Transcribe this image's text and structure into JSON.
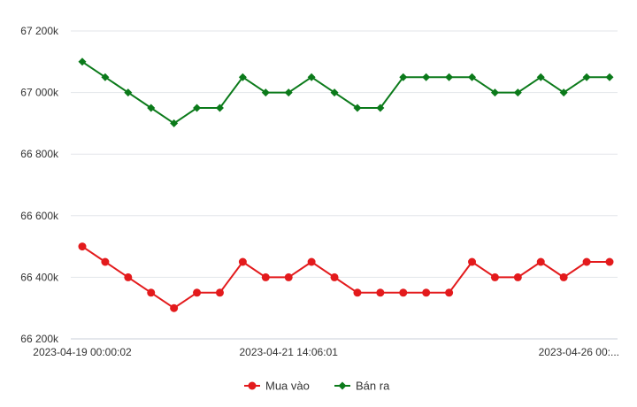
{
  "chart_data": {
    "type": "line",
    "title": "",
    "xlabel": "",
    "ylabel": "",
    "ylim": [
      66200,
      67200
    ],
    "yticks": [
      66200,
      66400,
      66600,
      66800,
      67000,
      67200
    ],
    "ytick_labels": [
      "66 200k",
      "66 400k",
      "66 600k",
      "66 800k",
      "67 000k",
      "67 200k"
    ],
    "xtick_labels": [
      {
        "index": 0,
        "label": "2023-04-19 00:00:02"
      },
      {
        "index": 9,
        "label": "2023-04-21 14:06:01"
      },
      {
        "index": 23,
        "label": "2023-04-26 00:..."
      }
    ],
    "grid": true,
    "legend_position": "bottom",
    "series": [
      {
        "name": "Mua vào",
        "color": "#e31a1c",
        "marker": "circle",
        "values": [
          66500,
          66450,
          66400,
          66350,
          66300,
          66350,
          66350,
          66450,
          66400,
          66400,
          66450,
          66400,
          66350,
          66350,
          66350,
          66350,
          66350,
          66450,
          66400,
          66400,
          66450,
          66400,
          66450,
          66450
        ]
      },
      {
        "name": "Bán ra",
        "color": "#0b7a1a",
        "marker": "diamond",
        "values": [
          67100,
          67050,
          67000,
          66950,
          66900,
          66950,
          66950,
          67050,
          67000,
          67000,
          67050,
          67000,
          66950,
          66950,
          67050,
          67050,
          67050,
          67050,
          67000,
          67000,
          67050,
          67000,
          67050,
          67050
        ]
      }
    ]
  }
}
